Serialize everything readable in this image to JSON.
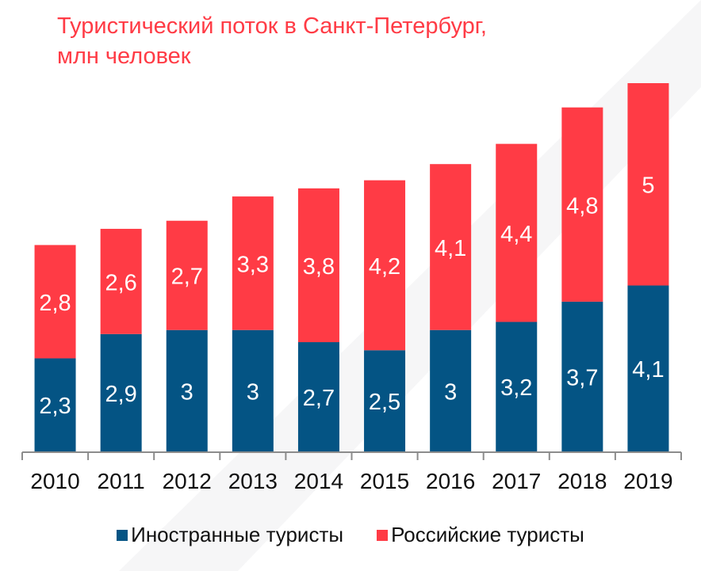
{
  "title_lines": [
    "Туристический поток в Санкт-Петербург,",
    "млн человек"
  ],
  "colors": {
    "title": "#ff3b45",
    "foreign": "#045484",
    "russian": "#ff3b45",
    "axis": "#8c8c8c",
    "stripe": "#f6f6f7"
  },
  "chart_data": {
    "type": "bar",
    "stacked": true,
    "title": "Туристический поток в Санкт-Петербург, млн человек",
    "xlabel": "",
    "ylabel": "",
    "categories": [
      "2010",
      "2011",
      "2012",
      "2013",
      "2014",
      "2015",
      "2016",
      "2017",
      "2018",
      "2019"
    ],
    "series": [
      {
        "name": "Иностранные туристы",
        "color": "#045484",
        "values": [
          2.3,
          2.9,
          3,
          3,
          2.7,
          2.5,
          3,
          3.2,
          3.7,
          4.1
        ],
        "labels": [
          "2,3",
          "2,9",
          "3",
          "3",
          "2,7",
          "2,5",
          "3",
          "3,2",
          "3,7",
          "4,1"
        ]
      },
      {
        "name": "Российские туристы",
        "color": "#ff3b45",
        "values": [
          2.8,
          2.6,
          2.7,
          3.3,
          3.8,
          4.2,
          4.1,
          4.4,
          4.8,
          5
        ],
        "labels": [
          "2,8",
          "2,6",
          "2,7",
          "3,3",
          "3,8",
          "4,2",
          "4,1",
          "4,4",
          "4,8",
          "5"
        ]
      }
    ],
    "ylim": [
      0,
      9.5
    ],
    "grid": false,
    "legend": "bottom"
  }
}
